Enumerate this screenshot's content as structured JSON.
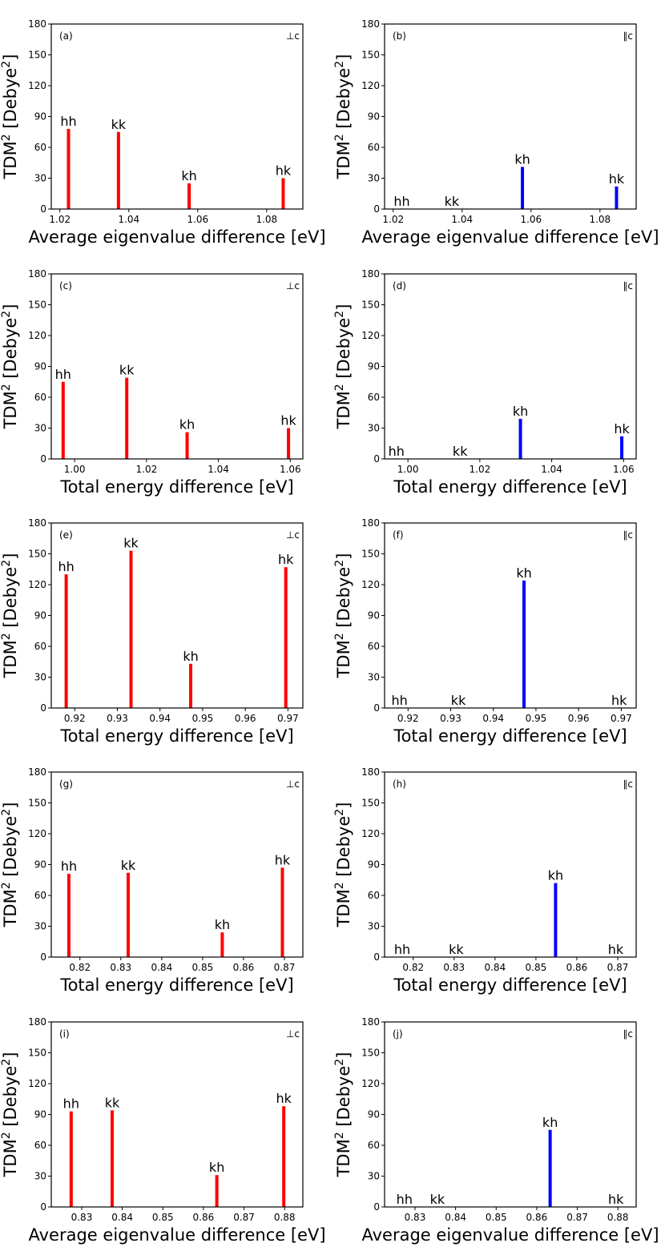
{
  "chart_data": [
    {
      "type": "bar",
      "panel": "(a)",
      "orientation": "⊥c",
      "xlabel": "Average eigenvalue difference [eV]",
      "ylabel": "TDM",
      "ylabel_sup": "2",
      "ylabel_unit": " [Debye",
      "ylabel_unit_sup": "2",
      "ylabel_close": "]",
      "xlim": [
        1.0175,
        1.0905
      ],
      "ylim": [
        0,
        180
      ],
      "xticks": [
        "1.02",
        "1.04",
        "1.06",
        "1.08"
      ],
      "yticks": [
        "0",
        "30",
        "60",
        "90",
        "120",
        "150",
        "180"
      ],
      "color": "#ff0000",
      "bars": [
        {
          "label": "hh",
          "x": 1.0225,
          "value": 78
        },
        {
          "label": "kk",
          "x": 1.037,
          "value": 75
        },
        {
          "label": "kh",
          "x": 1.0575,
          "value": 25
        },
        {
          "label": "hk",
          "x": 1.0848,
          "value": 30
        }
      ]
    },
    {
      "type": "bar",
      "panel": "(b)",
      "orientation": "∥c",
      "xlabel": "Average eigenvalue difference [eV]",
      "ylabel": "TDM",
      "ylabel_sup": "2",
      "ylabel_unit": " [Debye",
      "ylabel_unit_sup": "2",
      "ylabel_close": "]",
      "xlim": [
        1.0175,
        1.0905
      ],
      "ylim": [
        0,
        180
      ],
      "xticks": [
        "1.02",
        "1.04",
        "1.06",
        "1.08"
      ],
      "yticks": [
        "0",
        "30",
        "60",
        "90",
        "120",
        "150",
        "180"
      ],
      "color": "#0000ff",
      "bars": [
        {
          "label": "hh",
          "x": 1.0225,
          "value": 0
        },
        {
          "label": "kk",
          "x": 1.037,
          "value": 0
        },
        {
          "label": "kh",
          "x": 1.0575,
          "value": 41
        },
        {
          "label": "hk",
          "x": 1.0848,
          "value": 22
        }
      ]
    },
    {
      "type": "bar",
      "panel": "(c)",
      "orientation": "⊥c",
      "xlabel": "Total energy difference [eV]",
      "ylabel": "TDM",
      "ylabel_sup": "2",
      "ylabel_unit": " [Debye",
      "ylabel_unit_sup": "2",
      "ylabel_close": "]",
      "xlim": [
        0.9935,
        1.0635
      ],
      "ylim": [
        0,
        180
      ],
      "xticks": [
        "1.00",
        "1.02",
        "1.04",
        "1.06"
      ],
      "yticks": [
        "0",
        "30",
        "60",
        "90",
        "120",
        "150",
        "180"
      ],
      "color": "#ff0000",
      "bars": [
        {
          "label": "hh",
          "x": 0.9968,
          "value": 75
        },
        {
          "label": "kk",
          "x": 1.0145,
          "value": 79
        },
        {
          "label": "kh",
          "x": 1.0313,
          "value": 26
        },
        {
          "label": "hk",
          "x": 1.0595,
          "value": 30
        }
      ]
    },
    {
      "type": "bar",
      "panel": "(d)",
      "orientation": "∥c",
      "xlabel": "Total energy difference [eV]",
      "ylabel": "TDM",
      "ylabel_sup": "2",
      "ylabel_unit": " [Debye",
      "ylabel_unit_sup": "2",
      "ylabel_close": "]",
      "xlim": [
        0.9935,
        1.0635
      ],
      "ylim": [
        0,
        180
      ],
      "xticks": [
        "1.00",
        "1.02",
        "1.04",
        "1.06"
      ],
      "yticks": [
        "0",
        "30",
        "60",
        "90",
        "120",
        "150",
        "180"
      ],
      "color": "#0000ff",
      "bars": [
        {
          "label": "hh",
          "x": 0.9968,
          "value": 0
        },
        {
          "label": "kk",
          "x": 1.0145,
          "value": 0
        },
        {
          "label": "kh",
          "x": 1.0313,
          "value": 39
        },
        {
          "label": "hk",
          "x": 1.0595,
          "value": 22
        }
      ]
    },
    {
      "type": "bar",
      "panel": "(e)",
      "orientation": "⊥c",
      "xlabel": "Total energy difference [eV]",
      "ylabel": "TDM",
      "ylabel_sup": "2",
      "ylabel_unit": " [Debye",
      "ylabel_unit_sup": "2",
      "ylabel_close": "]",
      "xlim": [
        0.9145,
        0.9735
      ],
      "ylim": [
        0,
        180
      ],
      "xticks": [
        "0.92",
        "0.93",
        "0.94",
        "0.95",
        "0.96",
        "0.97"
      ],
      "yticks": [
        "0",
        "30",
        "60",
        "90",
        "120",
        "150",
        "180"
      ],
      "color": "#ff0000",
      "bars": [
        {
          "label": "hh",
          "x": 0.918,
          "value": 130
        },
        {
          "label": "kk",
          "x": 0.9332,
          "value": 153
        },
        {
          "label": "kh",
          "x": 0.9472,
          "value": 43
        },
        {
          "label": "hk",
          "x": 0.9695,
          "value": 137
        }
      ]
    },
    {
      "type": "bar",
      "panel": "(f)",
      "orientation": "∥c",
      "xlabel": "Total energy difference [eV]",
      "ylabel": "TDM",
      "ylabel_sup": "2",
      "ylabel_unit": " [Debye",
      "ylabel_unit_sup": "2",
      "ylabel_close": "]",
      "xlim": [
        0.9145,
        0.9735
      ],
      "ylim": [
        0,
        180
      ],
      "xticks": [
        "0.92",
        "0.93",
        "0.94",
        "0.95",
        "0.96",
        "0.97"
      ],
      "yticks": [
        "0",
        "30",
        "60",
        "90",
        "120",
        "150",
        "180"
      ],
      "color": "#0000ff",
      "bars": [
        {
          "label": "hh",
          "x": 0.918,
          "value": 0
        },
        {
          "label": "kk",
          "x": 0.9318,
          "value": 0
        },
        {
          "label": "kh",
          "x": 0.9472,
          "value": 124
        },
        {
          "label": "hk",
          "x": 0.9695,
          "value": 0
        }
      ]
    },
    {
      "type": "bar",
      "panel": "(g)",
      "orientation": "⊥c",
      "xlabel": "Total energy difference [eV]",
      "ylabel": "TDM",
      "ylabel_sup": "2",
      "ylabel_unit": " [Debye",
      "ylabel_unit_sup": "2",
      "ylabel_close": "]",
      "xlim": [
        0.813,
        0.8745
      ],
      "ylim": [
        0,
        180
      ],
      "xticks": [
        "0.82",
        "0.83",
        "0.84",
        "0.85",
        "0.86",
        "0.87"
      ],
      "yticks": [
        "0",
        "30",
        "60",
        "90",
        "120",
        "150",
        "180"
      ],
      "color": "#ff0000",
      "bars": [
        {
          "label": "hh",
          "x": 0.8173,
          "value": 81
        },
        {
          "label": "kk",
          "x": 0.8318,
          "value": 82
        },
        {
          "label": "kh",
          "x": 0.8548,
          "value": 24
        },
        {
          "label": "hk",
          "x": 0.8695,
          "value": 87
        }
      ]
    },
    {
      "type": "bar",
      "panel": "(h)",
      "orientation": "∥c",
      "xlabel": "Total energy difference [eV]",
      "ylabel": "TDM",
      "ylabel_sup": "2",
      "ylabel_unit": " [Debye",
      "ylabel_unit_sup": "2",
      "ylabel_close": "]",
      "xlim": [
        0.813,
        0.8745
      ],
      "ylim": [
        0,
        180
      ],
      "xticks": [
        "0.82",
        "0.83",
        "0.84",
        "0.85",
        "0.86",
        "0.87"
      ],
      "yticks": [
        "0",
        "30",
        "60",
        "90",
        "120",
        "150",
        "180"
      ],
      "color": "#0000ff",
      "bars": [
        {
          "label": "hh",
          "x": 0.8173,
          "value": 0
        },
        {
          "label": "kk",
          "x": 0.8305,
          "value": 0
        },
        {
          "label": "kh",
          "x": 0.8548,
          "value": 72
        },
        {
          "label": "hk",
          "x": 0.8695,
          "value": 0
        }
      ]
    },
    {
      "type": "bar",
      "panel": "(i)",
      "orientation": "⊥c",
      "xlabel": "Average eigenvalue difference [eV]",
      "ylabel": "TDM",
      "ylabel_sup": "2",
      "ylabel_unit": " [Debye",
      "ylabel_unit_sup": "2",
      "ylabel_close": "]",
      "xlim": [
        0.8225,
        0.8845
      ],
      "ylim": [
        0,
        180
      ],
      "xticks": [
        "0.83",
        "0.84",
        "0.85",
        "0.86",
        "0.87",
        "0.88"
      ],
      "yticks": [
        "0",
        "30",
        "60",
        "90",
        "120",
        "150",
        "180"
      ],
      "color": "#ff0000",
      "bars": [
        {
          "label": "hh",
          "x": 0.8274,
          "value": 93
        },
        {
          "label": "kk",
          "x": 0.8375,
          "value": 94
        },
        {
          "label": "kh",
          "x": 0.8633,
          "value": 31
        },
        {
          "label": "hk",
          "x": 0.8798,
          "value": 98
        }
      ]
    },
    {
      "type": "bar",
      "panel": "(j)",
      "orientation": "∥c",
      "xlabel": "Average eigenvalue difference [eV]",
      "ylabel": "TDM",
      "ylabel_sup": "2",
      "ylabel_unit": " [Debye",
      "ylabel_unit_sup": "2",
      "ylabel_close": "]",
      "xlim": [
        0.8225,
        0.8845
      ],
      "ylim": [
        0,
        180
      ],
      "xticks": [
        "0.83",
        "0.84",
        "0.85",
        "0.86",
        "0.87",
        "0.88"
      ],
      "yticks": [
        "0",
        "30",
        "60",
        "90",
        "120",
        "150",
        "180"
      ],
      "color": "#0000ff",
      "bars": [
        {
          "label": "hh",
          "x": 0.8274,
          "value": 0
        },
        {
          "label": "kk",
          "x": 0.8355,
          "value": 0
        },
        {
          "label": "kh",
          "x": 0.8633,
          "value": 75
        },
        {
          "label": "hk",
          "x": 0.8795,
          "value": 0
        }
      ]
    }
  ]
}
